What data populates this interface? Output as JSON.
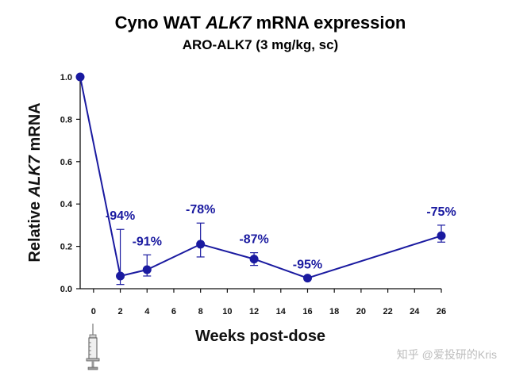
{
  "chart_data": {
    "type": "line",
    "title_parts": [
      {
        "text": "Cyno WAT ",
        "italic": false
      },
      {
        "text": "ALK7",
        "italic": true
      },
      {
        "text": " mRNA expression",
        "italic": false
      }
    ],
    "subtitle": "ARO-ALK7 (3 mg/kg, sc)",
    "xlabel": "Weeks post-dose",
    "ylabel_parts": [
      {
        "text": "Relative ",
        "italic": false
      },
      {
        "text": "ALK7",
        "italic": true
      },
      {
        "text": " mRNA",
        "italic": false
      }
    ],
    "xlim": [
      -1,
      26
    ],
    "ylim": [
      0,
      1.0
    ],
    "x_ticks": [
      0,
      2,
      4,
      6,
      8,
      10,
      12,
      14,
      16,
      18,
      20,
      22,
      24,
      26
    ],
    "y_ticks": [
      {
        "value": 0.0,
        "label": "0.0"
      },
      {
        "value": 0.2,
        "label": "0.2"
      },
      {
        "value": 0.4,
        "label": "0.4"
      },
      {
        "value": 0.6,
        "label": "0.6"
      },
      {
        "value": 0.8,
        "label": "0.8"
      },
      {
        "value": 1.0,
        "label": "1.0"
      }
    ],
    "series": [
      {
        "color": "#1a1aa0",
        "points": [
          {
            "x": -1,
            "y": 1.0,
            "err_low": 1.0,
            "err_high": 1.0,
            "label": ""
          },
          {
            "x": 2,
            "y": 0.06,
            "err_low": 0.02,
            "err_high": 0.28,
            "label": "-94%"
          },
          {
            "x": 4,
            "y": 0.09,
            "err_low": 0.06,
            "err_high": 0.16,
            "label": "-91%"
          },
          {
            "x": 8,
            "y": 0.21,
            "err_low": 0.15,
            "err_high": 0.31,
            "label": "-78%"
          },
          {
            "x": 12,
            "y": 0.14,
            "err_low": 0.11,
            "err_high": 0.17,
            "label": "-87%"
          },
          {
            "x": 16,
            "y": 0.05,
            "err_low": 0.05,
            "err_high": 0.05,
            "label": "-95%"
          },
          {
            "x": 26,
            "y": 0.25,
            "err_low": 0.22,
            "err_high": 0.3,
            "label": "-75%"
          }
        ]
      }
    ],
    "grid": false,
    "legend": "none"
  },
  "watermark": "知乎 @爱投研的Kris",
  "dose_icon": "syringe-icon"
}
